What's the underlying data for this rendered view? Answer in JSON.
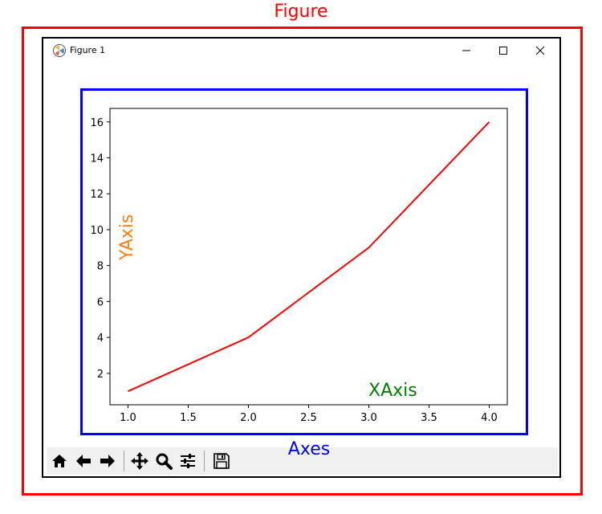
{
  "labels": {
    "figure": "Figure",
    "axes": "Axes"
  },
  "window": {
    "title": "Figure 1",
    "minimize_icon": "minimize-icon",
    "maximize_icon": "maximize-icon",
    "close_icon": "close-icon"
  },
  "toolbar": {
    "icons": [
      "home-icon",
      "back-arrow-icon",
      "forward-arrow-icon",
      "pan-icon",
      "zoom-icon",
      "configure-subplots-icon",
      "save-icon"
    ]
  },
  "colors": {
    "figure_box": "#ff0000",
    "axes_box": "#0000ff",
    "line": "#ff0000",
    "xlabel": "#008000",
    "ylabel": "#ff7f0e"
  },
  "chart_data": {
    "type": "line",
    "title": "",
    "xlabel": "XAxis",
    "ylabel": "YAxis",
    "x": [
      1,
      2,
      3,
      4
    ],
    "series": [
      {
        "values": [
          1,
          4,
          9,
          16
        ]
      }
    ],
    "xlim": [
      0.85,
      4.15
    ],
    "ylim": [
      0.25,
      16.75
    ],
    "xticks": [
      1.0,
      1.5,
      2.0,
      2.5,
      3.0,
      3.5,
      4.0
    ],
    "xtick_labels": [
      "1.0",
      "1.5",
      "2.0",
      "2.5",
      "3.0",
      "3.5",
      "4.0"
    ],
    "yticks": [
      2,
      4,
      6,
      8,
      10,
      12,
      14,
      16
    ],
    "ytick_labels": [
      "2",
      "4",
      "6",
      "8",
      "10",
      "12",
      "14",
      "16"
    ],
    "grid": false,
    "legend": "none"
  }
}
